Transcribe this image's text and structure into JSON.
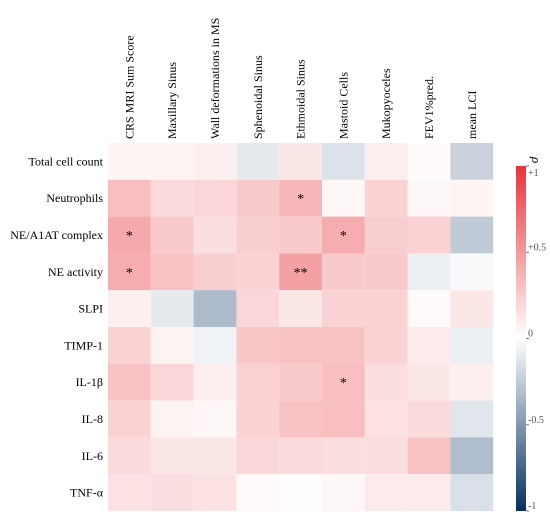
{
  "chart_data": {
    "type": "heatmap",
    "title": "",
    "xlabel": "",
    "ylabel": "",
    "columns": [
      "CRS MRI Sum Score",
      "Maxillary Sinus",
      "Wall deformations in MS",
      "Sphenoidal Sinus",
      "Ethmoidal Sinus",
      "Mastoid Cells",
      "Mukopyoceles",
      "FEV1%pred.",
      "mean LCI"
    ],
    "rows": [
      "Total cell count",
      "Neutrophils",
      "NE/A1AT complex",
      "NE activity",
      "SLPI",
      "TIMP-1",
      "IL-1β",
      "IL-8",
      "IL-6",
      "TNF-α"
    ],
    "values": [
      [
        0.05,
        0.06,
        0.08,
        -0.1,
        0.12,
        -0.14,
        0.08,
        0.02,
        -0.22
      ],
      [
        0.32,
        0.18,
        0.2,
        0.26,
        0.35,
        0.04,
        0.22,
        0.04,
        0.05
      ],
      [
        0.42,
        0.26,
        0.16,
        0.24,
        0.26,
        0.4,
        0.24,
        0.22,
        -0.25
      ],
      [
        0.4,
        0.3,
        0.24,
        0.22,
        0.46,
        0.26,
        0.26,
        -0.08,
        -0.03
      ],
      [
        0.08,
        -0.1,
        -0.33,
        0.2,
        0.12,
        0.22,
        0.22,
        0.02,
        0.12
      ],
      [
        0.22,
        0.06,
        -0.06,
        0.28,
        0.3,
        0.3,
        0.22,
        0.1,
        -0.08
      ],
      [
        0.3,
        0.2,
        0.08,
        0.22,
        0.26,
        0.32,
        0.16,
        0.12,
        0.08
      ],
      [
        0.22,
        0.06,
        0.04,
        0.22,
        0.3,
        0.32,
        0.14,
        0.18,
        -0.12
      ],
      [
        0.18,
        0.12,
        0.12,
        0.2,
        0.18,
        0.16,
        0.16,
        0.3,
        -0.32
      ],
      [
        0.14,
        0.16,
        0.14,
        0.02,
        0.01,
        0.04,
        0.1,
        0.1,
        -0.15
      ]
    ],
    "significance": [
      [
        "",
        "",
        "",
        "",
        "",
        "",
        "",
        "",
        ""
      ],
      [
        "",
        "",
        "",
        "",
        "*",
        "",
        "",
        "",
        ""
      ],
      [
        "*",
        "",
        "",
        "",
        "",
        "*",
        "",
        "",
        ""
      ],
      [
        "*",
        "",
        "",
        "",
        "**",
        "",
        "",
        "",
        ""
      ],
      [
        "",
        "",
        "",
        "",
        "",
        "",
        "",
        "",
        ""
      ],
      [
        "",
        "",
        "",
        "",
        "",
        "",
        "",
        "",
        ""
      ],
      [
        "",
        "",
        "",
        "",
        "",
        "*",
        "",
        "",
        ""
      ],
      [
        "",
        "",
        "",
        "",
        "",
        "",
        "",
        "",
        ""
      ],
      [
        "",
        "",
        "",
        "",
        "",
        "",
        "",
        "",
        ""
      ],
      [
        "",
        "",
        "",
        "",
        "",
        "",
        "",
        "",
        ""
      ]
    ],
    "colorbar": {
      "title": "ρ",
      "range": [
        -1,
        1
      ],
      "ticks": [
        1,
        0.5,
        0,
        -0.5,
        -1
      ],
      "tick_labels": [
        "+1",
        "+0.5",
        "0",
        "-0.5",
        "-1"
      ],
      "colors": {
        "negative": "#053061",
        "zero": "#ffffff",
        "positive": "#e8333a"
      }
    }
  }
}
